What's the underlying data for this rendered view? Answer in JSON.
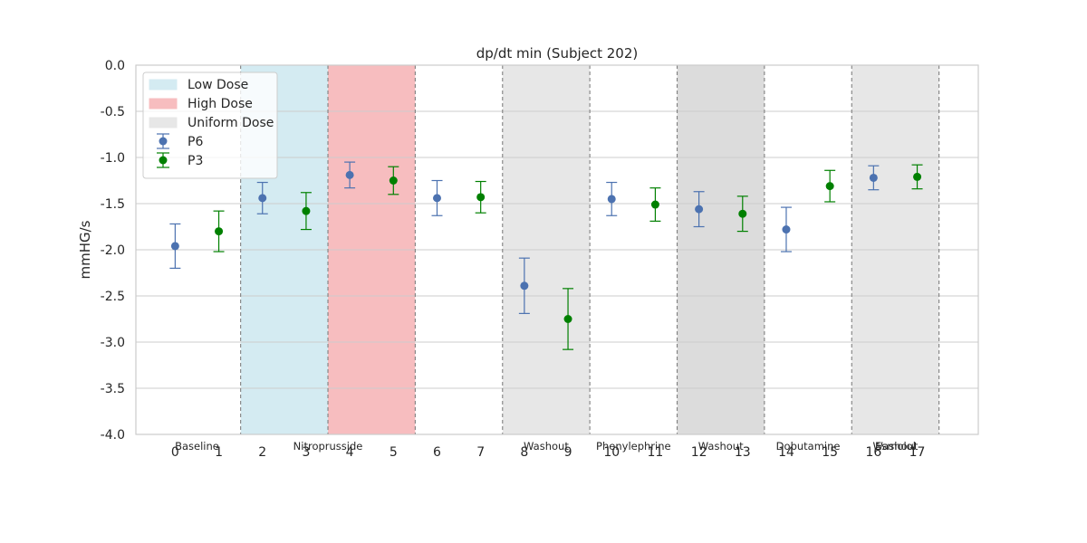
{
  "chart_data": {
    "type": "scatter",
    "title": "dp/dt min (Subject 202)",
    "xlabel": "",
    "ylabel": "mmHG/s",
    "ylim": [
      -4.0,
      0.0
    ],
    "xlim": [
      -0.9,
      18.4
    ],
    "yticks": [
      "0.0",
      "-0.5",
      "-1.0",
      "-1.5",
      "-2.0",
      "-2.5",
      "-3.0",
      "-3.5",
      "-4.0"
    ],
    "ytick_values": [
      0.0,
      -0.5,
      -1.0,
      -1.5,
      -2.0,
      -2.5,
      -3.0,
      -3.5,
      -4.0
    ],
    "xticks": [
      "0",
      "1",
      "2",
      "3",
      "4",
      "5",
      "6",
      "7",
      "8",
      "9",
      "10",
      "11",
      "12",
      "13",
      "14",
      "15",
      "16",
      "17"
    ],
    "grid": true,
    "legend_position": "top-left",
    "phases": [
      {
        "label": "Baseline",
        "start": -0.5,
        "end": 1.5,
        "dose": "none",
        "color": "#ffffff"
      },
      {
        "label": "Nitroprusside",
        "start": 1.5,
        "end": 3.5,
        "dose": "low",
        "color": "#d4ebf2"
      },
      {
        "label": "",
        "start": 3.5,
        "end": 5.5,
        "dose": "high",
        "color": "#f7bdbf"
      },
      {
        "label": "Washout",
        "start": 5.5,
        "end": 7.5,
        "dose": "none",
        "color": "#ffffff"
      },
      {
        "label": "Phenylephrine",
        "start": 7.5,
        "end": 9.5,
        "dose": "uniform",
        "color": "#e7e7e7"
      },
      {
        "label": "Washout",
        "start": 9.5,
        "end": 11.5,
        "dose": "none",
        "color": "#ffffff"
      },
      {
        "label": "Dobutamine",
        "start": 11.5,
        "end": 13.5,
        "dose": "uniform",
        "color": "#dcdcdc"
      },
      {
        "label": "Washout",
        "start": 13.5,
        "end": 15.5,
        "dose": "none",
        "color": "#ffffff"
      },
      {
        "label": "Esmolol",
        "start": 15.5,
        "end": 17.5,
        "dose": "uniform",
        "color": "#e7e7e7"
      }
    ],
    "phase_label_positions": [
      0.5,
      3.5,
      6.5,
      8.5,
      10.5,
      12.5,
      14.5,
      16.5,
      16.5
    ],
    "boundaries": [
      1.5,
      3.5,
      5.5,
      7.5,
      9.5,
      11.5,
      13.5,
      15.5,
      17.5
    ],
    "legend": [
      {
        "label": "Low Dose",
        "kind": "patch",
        "color": "#d4ebf2"
      },
      {
        "label": "High Dose",
        "kind": "patch",
        "color": "#f7bdbf"
      },
      {
        "label": "Uniform Dose",
        "kind": "patch",
        "color": "#e7e7e7"
      },
      {
        "label": "P6",
        "kind": "errorbar",
        "color": "#4c72b0"
      },
      {
        "label": "P3",
        "kind": "errorbar",
        "color": "#008000"
      }
    ],
    "series": [
      {
        "name": "P6",
        "color": "#4c72b0",
        "x": [
          0,
          2,
          4,
          6,
          8,
          10,
          12,
          14,
          16
        ],
        "y": [
          -1.96,
          -1.44,
          -1.19,
          -1.44,
          -2.39,
          -1.45,
          -1.56,
          -1.78,
          -1.22
        ],
        "err": [
          0.24,
          0.17,
          0.14,
          0.19,
          0.3,
          0.18,
          0.19,
          0.24,
          0.13
        ]
      },
      {
        "name": "P3",
        "color": "#008000",
        "x": [
          1,
          3,
          5,
          7,
          9,
          11,
          13,
          15,
          17
        ],
        "y": [
          -1.8,
          -1.58,
          -1.25,
          -1.43,
          -2.75,
          -1.51,
          -1.61,
          -1.31,
          -1.21
        ],
        "err": [
          0.22,
          0.2,
          0.15,
          0.17,
          0.33,
          0.18,
          0.19,
          0.17,
          0.13
        ]
      }
    ]
  }
}
